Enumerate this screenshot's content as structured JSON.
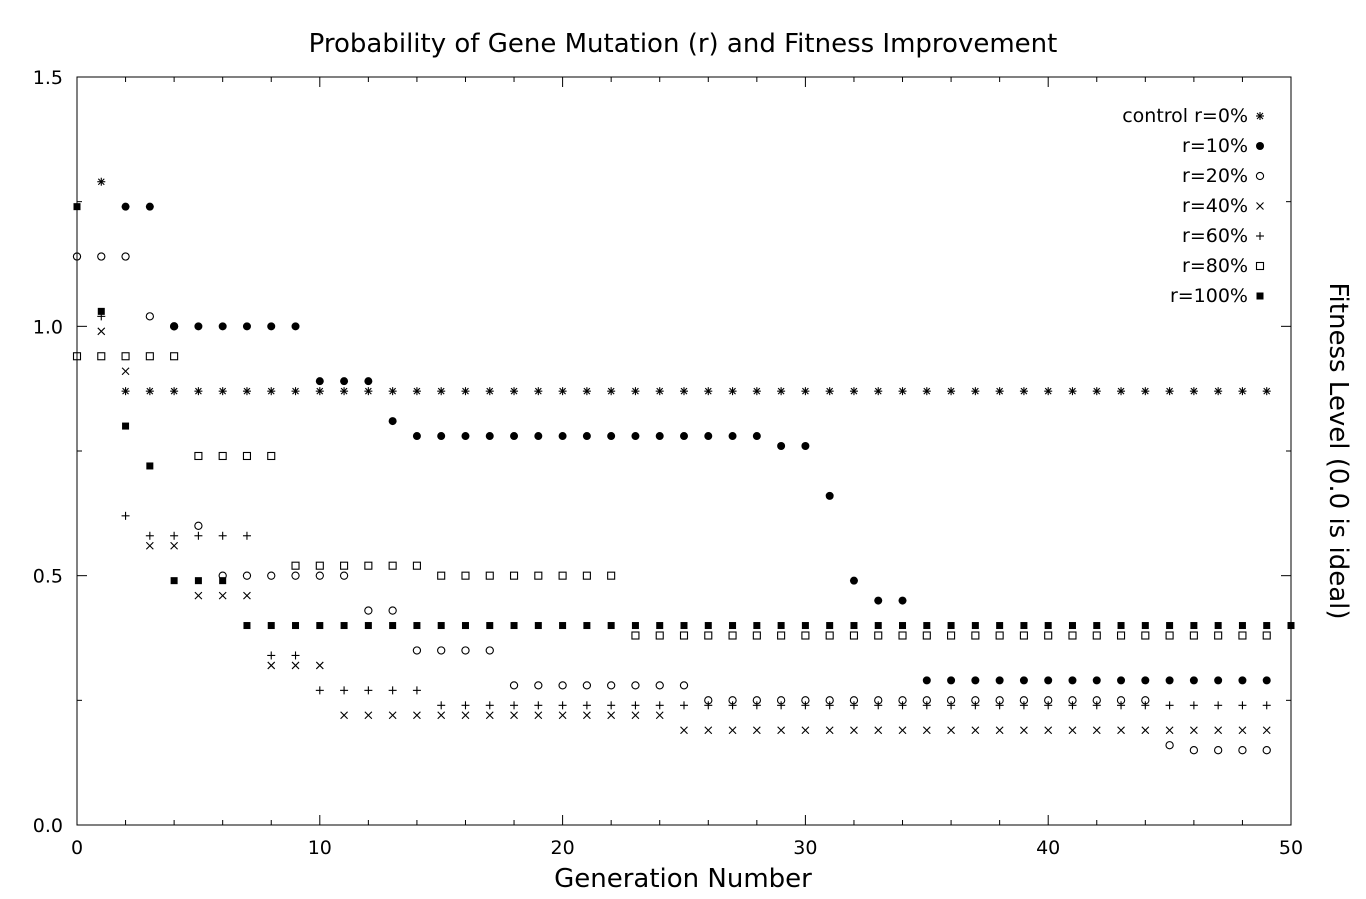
{
  "chart_data": {
    "type": "scatter",
    "title": "Probability of Gene Mutation (r) and Fitness Improvement",
    "xlabel": "Generation Number",
    "ylabel": "Fitness Level (0.0 is ideal)",
    "xlim": [
      0,
      50
    ],
    "ylim": [
      0,
      1.5
    ],
    "x_ticks": [
      0,
      10,
      20,
      30,
      40,
      50
    ],
    "x_tick_labels": [
      "0",
      "10",
      "20",
      "30",
      "40",
      "50"
    ],
    "y_ticks": [
      0,
      0.5,
      1.0,
      1.5
    ],
    "y_tick_labels": [
      "0.0",
      "0.5",
      "1.0",
      "1.5"
    ],
    "grid": false,
    "legend_position": "top-right",
    "series": [
      {
        "name": "control r=0%",
        "marker": "asterisk",
        "x": [
          1,
          2,
          3,
          4,
          5,
          6,
          7,
          8,
          9,
          10,
          11,
          12,
          13,
          14,
          15,
          16,
          17,
          18,
          19,
          20,
          21,
          22,
          23,
          24,
          25,
          26,
          27,
          28,
          29,
          30,
          31,
          32,
          33,
          34,
          35,
          36,
          37,
          38,
          39,
          40,
          41,
          42,
          43,
          44,
          45,
          46,
          47,
          48,
          49
        ],
        "y": [
          1.29,
          0.87,
          0.87,
          0.87,
          0.87,
          0.87,
          0.87,
          0.87,
          0.87,
          0.87,
          0.87,
          0.87,
          0.87,
          0.87,
          0.87,
          0.87,
          0.87,
          0.87,
          0.87,
          0.87,
          0.87,
          0.87,
          0.87,
          0.87,
          0.87,
          0.87,
          0.87,
          0.87,
          0.87,
          0.87,
          0.87,
          0.87,
          0.87,
          0.87,
          0.87,
          0.87,
          0.87,
          0.87,
          0.87,
          0.87,
          0.87,
          0.87,
          0.87,
          0.87,
          0.87,
          0.87,
          0.87,
          0.87,
          0.87
        ]
      },
      {
        "name": "r=10%",
        "marker": "filled-circle",
        "x": [
          2,
          3,
          4,
          5,
          6,
          7,
          8,
          9,
          10,
          11,
          12,
          13,
          14,
          15,
          16,
          17,
          18,
          19,
          20,
          21,
          22,
          23,
          24,
          25,
          26,
          27,
          28,
          29,
          30,
          31,
          32,
          33,
          34,
          35,
          36,
          37,
          38,
          39,
          40,
          41,
          42,
          43,
          44,
          45,
          46,
          47,
          48,
          49
        ],
        "y": [
          1.24,
          1.24,
          1.0,
          1.0,
          1.0,
          1.0,
          1.0,
          1.0,
          0.89,
          0.89,
          0.89,
          0.81,
          0.78,
          0.78,
          0.78,
          0.78,
          0.78,
          0.78,
          0.78,
          0.78,
          0.78,
          0.78,
          0.78,
          0.78,
          0.78,
          0.78,
          0.78,
          0.76,
          0.76,
          0.66,
          0.49,
          0.45,
          0.45,
          0.29,
          0.29,
          0.29,
          0.29,
          0.29,
          0.29,
          0.29,
          0.29,
          0.29,
          0.29,
          0.29,
          0.29,
          0.29,
          0.29,
          0.29
        ]
      },
      {
        "name": "r=20%",
        "marker": "open-circle",
        "x": [
          0,
          1,
          2,
          3,
          4,
          5,
          6,
          7,
          8,
          9,
          10,
          11,
          12,
          13,
          14,
          15,
          16,
          17,
          18,
          19,
          20,
          21,
          22,
          23,
          24,
          25,
          26,
          27,
          28,
          29,
          30,
          31,
          32,
          33,
          34,
          35,
          36,
          37,
          38,
          39,
          40,
          41,
          42,
          43,
          44,
          45,
          46,
          47,
          48,
          49
        ],
        "y": [
          1.14,
          1.14,
          1.14,
          1.02,
          1.0,
          0.6,
          0.5,
          0.5,
          0.5,
          0.5,
          0.5,
          0.5,
          0.43,
          0.43,
          0.35,
          0.35,
          0.35,
          0.35,
          0.28,
          0.28,
          0.28,
          0.28,
          0.28,
          0.28,
          0.28,
          0.28,
          0.25,
          0.25,
          0.25,
          0.25,
          0.25,
          0.25,
          0.25,
          0.25,
          0.25,
          0.25,
          0.25,
          0.25,
          0.25,
          0.25,
          0.25,
          0.25,
          0.25,
          0.25,
          0.25,
          0.16,
          0.15,
          0.15,
          0.15,
          0.15
        ]
      },
      {
        "name": "r=40%",
        "marker": "x",
        "x": [
          1,
          2,
          3,
          4,
          5,
          6,
          7,
          8,
          9,
          10,
          11,
          12,
          13,
          14,
          15,
          16,
          17,
          18,
          19,
          20,
          21,
          22,
          23,
          24,
          25,
          26,
          27,
          28,
          29,
          30,
          31,
          32,
          33,
          34,
          35,
          36,
          37,
          38,
          39,
          40,
          41,
          42,
          43,
          44,
          45,
          46,
          47,
          48,
          49
        ],
        "y": [
          0.99,
          0.91,
          0.56,
          0.56,
          0.46,
          0.46,
          0.46,
          0.32,
          0.32,
          0.32,
          0.22,
          0.22,
          0.22,
          0.22,
          0.22,
          0.22,
          0.22,
          0.22,
          0.22,
          0.22,
          0.22,
          0.22,
          0.22,
          0.22,
          0.19,
          0.19,
          0.19,
          0.19,
          0.19,
          0.19,
          0.19,
          0.19,
          0.19,
          0.19,
          0.19,
          0.19,
          0.19,
          0.19,
          0.19,
          0.19,
          0.19,
          0.19,
          0.19,
          0.19,
          0.19,
          0.19,
          0.19,
          0.19,
          0.19
        ]
      },
      {
        "name": "r=60%",
        "marker": "plus",
        "x": [
          1,
          2,
          3,
          4,
          5,
          6,
          7,
          8,
          9,
          10,
          11,
          12,
          13,
          14,
          15,
          16,
          17,
          18,
          19,
          20,
          21,
          22,
          23,
          24,
          25,
          26,
          27,
          28,
          29,
          30,
          31,
          32,
          33,
          34,
          35,
          36,
          37,
          38,
          39,
          40,
          41,
          42,
          43,
          44,
          45,
          46,
          47,
          48,
          49
        ],
        "y": [
          1.02,
          0.62,
          0.58,
          0.58,
          0.58,
          0.58,
          0.58,
          0.34,
          0.34,
          0.27,
          0.27,
          0.27,
          0.27,
          0.27,
          0.24,
          0.24,
          0.24,
          0.24,
          0.24,
          0.24,
          0.24,
          0.24,
          0.24,
          0.24,
          0.24,
          0.24,
          0.24,
          0.24,
          0.24,
          0.24,
          0.24,
          0.24,
          0.24,
          0.24,
          0.24,
          0.24,
          0.24,
          0.24,
          0.24,
          0.24,
          0.24,
          0.24,
          0.24,
          0.24,
          0.24,
          0.24,
          0.24,
          0.24,
          0.24
        ]
      },
      {
        "name": "r=80%",
        "marker": "open-square",
        "x": [
          0,
          1,
          2,
          3,
          4,
          5,
          6,
          7,
          8,
          9,
          10,
          11,
          12,
          13,
          14,
          15,
          16,
          17,
          18,
          19,
          20,
          21,
          22,
          23,
          24,
          25,
          26,
          27,
          28,
          29,
          30,
          31,
          32,
          33,
          34,
          35,
          36,
          37,
          38,
          39,
          40,
          41,
          42,
          43,
          44,
          45,
          46,
          47,
          48,
          49
        ],
        "y": [
          0.94,
          0.94,
          0.94,
          0.94,
          0.94,
          0.74,
          0.74,
          0.74,
          0.74,
          0.52,
          0.52,
          0.52,
          0.52,
          0.52,
          0.52,
          0.5,
          0.5,
          0.5,
          0.5,
          0.5,
          0.5,
          0.5,
          0.5,
          0.38,
          0.38,
          0.38,
          0.38,
          0.38,
          0.38,
          0.38,
          0.38,
          0.38,
          0.38,
          0.38,
          0.38,
          0.38,
          0.38,
          0.38,
          0.38,
          0.38,
          0.38,
          0.38,
          0.38,
          0.38,
          0.38,
          0.38,
          0.38,
          0.38,
          0.38,
          0.38
        ]
      },
      {
        "name": "r=100%",
        "marker": "filled-square",
        "x": [
          0,
          1,
          2,
          3,
          4,
          5,
          6,
          7,
          8,
          9,
          10,
          11,
          12,
          13,
          14,
          15,
          16,
          17,
          18,
          19,
          20,
          21,
          22,
          23,
          24,
          25,
          26,
          27,
          28,
          29,
          30,
          31,
          32,
          33,
          34,
          35,
          36,
          37,
          38,
          39,
          40,
          41,
          42,
          43,
          44,
          45,
          46,
          47,
          48,
          49,
          50
        ],
        "y": [
          1.24,
          1.03,
          0.8,
          0.72,
          0.49,
          0.49,
          0.49,
          0.4,
          0.4,
          0.4,
          0.4,
          0.4,
          0.4,
          0.4,
          0.4,
          0.4,
          0.4,
          0.4,
          0.4,
          0.4,
          0.4,
          0.4,
          0.4,
          0.4,
          0.4,
          0.4,
          0.4,
          0.4,
          0.4,
          0.4,
          0.4,
          0.4,
          0.4,
          0.4,
          0.4,
          0.4,
          0.4,
          0.4,
          0.4,
          0.4,
          0.4,
          0.4,
          0.4,
          0.4,
          0.4,
          0.4,
          0.4,
          0.4,
          0.4,
          0.4,
          0.4
        ]
      }
    ]
  }
}
